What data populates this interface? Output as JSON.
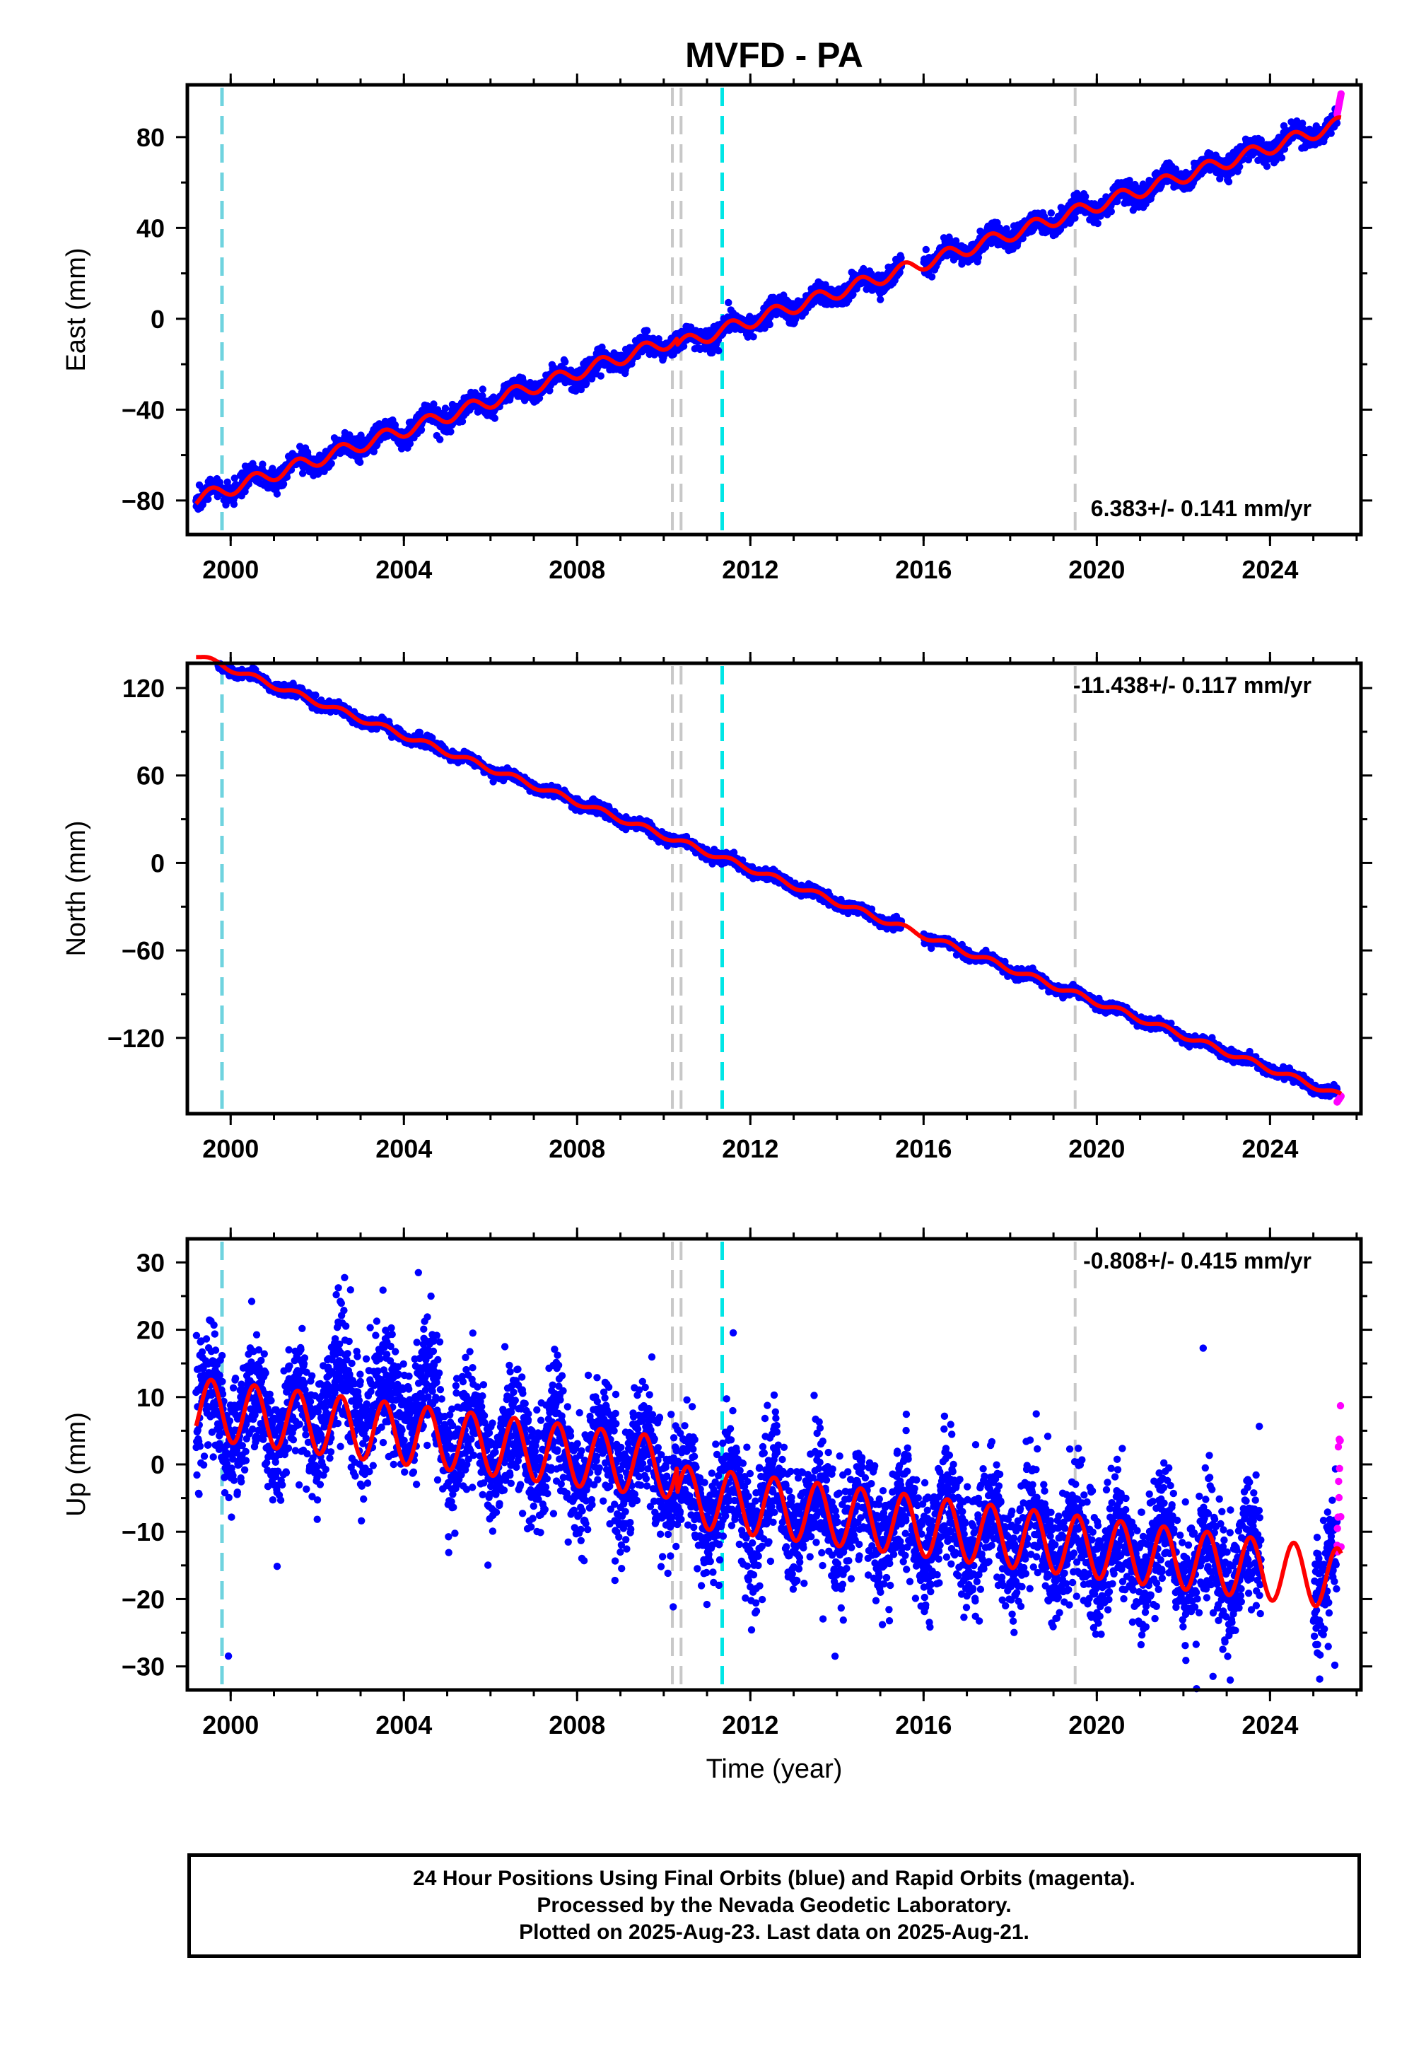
{
  "title": "MVFD - PA",
  "xlabel": "Time (year)",
  "footer": {
    "line1": "24 Hour Positions Using Final Orbits (blue) and Rapid Orbits (magenta).",
    "line2": "Processed by the Nevada Geodetic Laboratory.",
    "line3": "Plotted on 2025-Aug-23. Last data on 2025-Aug-21."
  },
  "colors": {
    "final_points": "#0000ff",
    "rapid_points": "#ff00ff",
    "model_fit": "#ff0000",
    "equipment_change": "#c8c8c8",
    "event_lightblue": "#6fd3df",
    "event_cyan": "#00e6e6"
  },
  "chart_data": [
    {
      "type": "scatter",
      "component": "east",
      "ylabel": "East (mm)",
      "rate_label": "6.383+/- 0.141 mm/yr",
      "rate_label_position": "bottom-right",
      "xlim": [
        1999.0,
        2026.1
      ],
      "ylim": [
        -95,
        103
      ],
      "xticks": [
        2000,
        2004,
        2008,
        2012,
        2016,
        2020,
        2024
      ],
      "yticks": [
        -80,
        -40,
        0,
        40,
        80
      ],
      "rate_mm_per_yr": 6.383,
      "value_at_2012": 2,
      "annual_amplitude_mm": 3,
      "scatter_mm": 2.3,
      "offsets": [
        {
          "x": 2010.3,
          "dy": -3
        }
      ],
      "data_gap": [
        2015.5,
        2016.0
      ],
      "final_end": 2025.55,
      "rapid_range": [
        2025.55,
        2025.64
      ],
      "rapid_y_range": [
        90,
        99
      ]
    },
    {
      "type": "scatter",
      "component": "north",
      "ylabel": "North (mm)",
      "rate_label": "-11.438+/- 0.117 mm/yr",
      "rate_label_position": "top-right",
      "xlim": [
        1999.0,
        2026.1
      ],
      "ylim": [
        -172,
        137
      ],
      "xticks": [
        2000,
        2004,
        2008,
        2012,
        2016,
        2020,
        2024
      ],
      "yticks": [
        -120,
        -60,
        0,
        60,
        120
      ],
      "rate_mm_per_yr": -11.438,
      "value_at_2012": -4,
      "annual_amplitude_mm": 2,
      "scatter_mm": 1.8,
      "offsets": [],
      "data_gap": [
        2015.5,
        2016.0
      ],
      "final_end": 2025.55,
      "rapid_range": [
        2025.55,
        2025.64
      ],
      "rapid_y_range": [
        -164,
        -160
      ]
    },
    {
      "type": "scatter",
      "component": "up",
      "ylabel": "Up (mm)",
      "rate_label": "-0.808+/- 0.415 mm/yr",
      "rate_label_position": "top-right",
      "xlim": [
        1999.0,
        2026.1
      ],
      "ylim": [
        -33.5,
        33.5
      ],
      "xticks": [
        2000,
        2004,
        2008,
        2012,
        2016,
        2020,
        2024
      ],
      "yticks": [
        -30,
        -20,
        -10,
        0,
        10,
        20,
        30
      ],
      "rate_mm_per_yr": -0.808,
      "value_at_2012": -2,
      "annual_amplitude_mm": 4.5,
      "scatter_mm": 4.5,
      "offsets": [
        {
          "x": 2010.3,
          "dy": -4
        }
      ],
      "data_gap": [
        2023.8,
        2025.0
      ],
      "final_end": 2025.55,
      "rapid_range": [
        2025.55,
        2025.64
      ],
      "rapid_y_range": [
        -16,
        9
      ]
    }
  ],
  "event_lines": [
    {
      "x": 1999.8,
      "kind": "event_lightblue"
    },
    {
      "x": 2010.2,
      "kind": "equipment_change"
    },
    {
      "x": 2010.4,
      "kind": "equipment_change"
    },
    {
      "x": 2011.35,
      "kind": "event_cyan"
    },
    {
      "x": 2019.5,
      "kind": "equipment_change"
    }
  ]
}
